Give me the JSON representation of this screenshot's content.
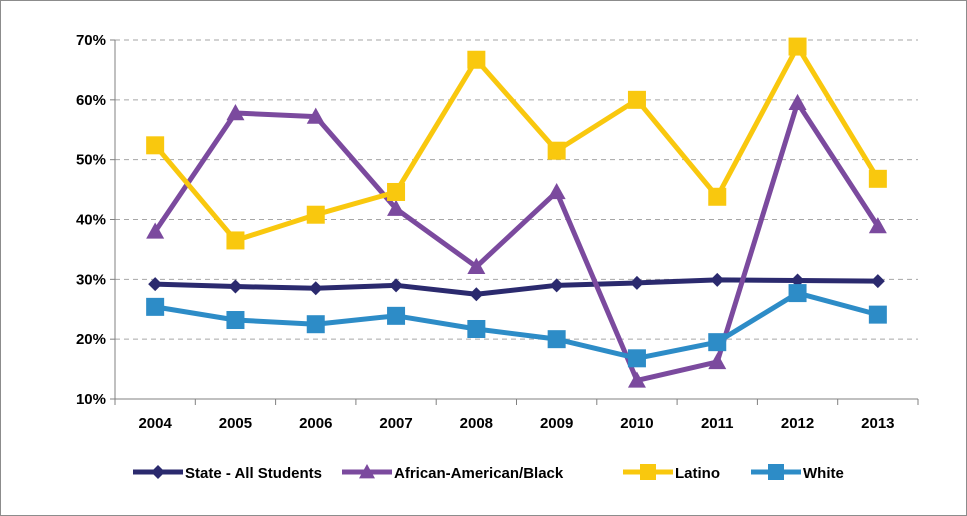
{
  "chart_data": {
    "type": "line",
    "title": "",
    "xlabel": "",
    "ylabel": "",
    "categories": [
      "2004",
      "2005",
      "2006",
      "2007",
      "2008",
      "2009",
      "2010",
      "2011",
      "2012",
      "2013"
    ],
    "y_tick_labels": [
      "10%",
      "20%",
      "30%",
      "40%",
      "50%",
      "60%",
      "70%"
    ],
    "ylim": [
      10,
      70
    ],
    "grid": "horizontal dashed",
    "legend_position": "bottom",
    "series": [
      {
        "name": "State - All Students",
        "color": "#2b2a6e",
        "marker": "diamond",
        "values": [
          29.2,
          28.8,
          28.5,
          29.0,
          27.5,
          29.0,
          29.4,
          29.9,
          29.8,
          29.7
        ]
      },
      {
        "name": "African-American/Black",
        "color": "#7b4a9e",
        "marker": "triangle",
        "values": [
          38.0,
          57.8,
          57.2,
          41.8,
          32.1,
          44.6,
          13.1,
          16.2,
          59.5,
          38.9
        ]
      },
      {
        "name": "Latino",
        "color": "#f9c80e",
        "marker": "square",
        "values": [
          52.4,
          36.5,
          40.8,
          44.6,
          66.7,
          51.5,
          60.0,
          43.8,
          68.9,
          46.8
        ]
      },
      {
        "name": "White",
        "color": "#2d8cc7",
        "marker": "square",
        "values": [
          25.4,
          23.2,
          22.5,
          23.9,
          21.7,
          20.0,
          16.8,
          19.5,
          27.7,
          24.1
        ]
      }
    ]
  }
}
